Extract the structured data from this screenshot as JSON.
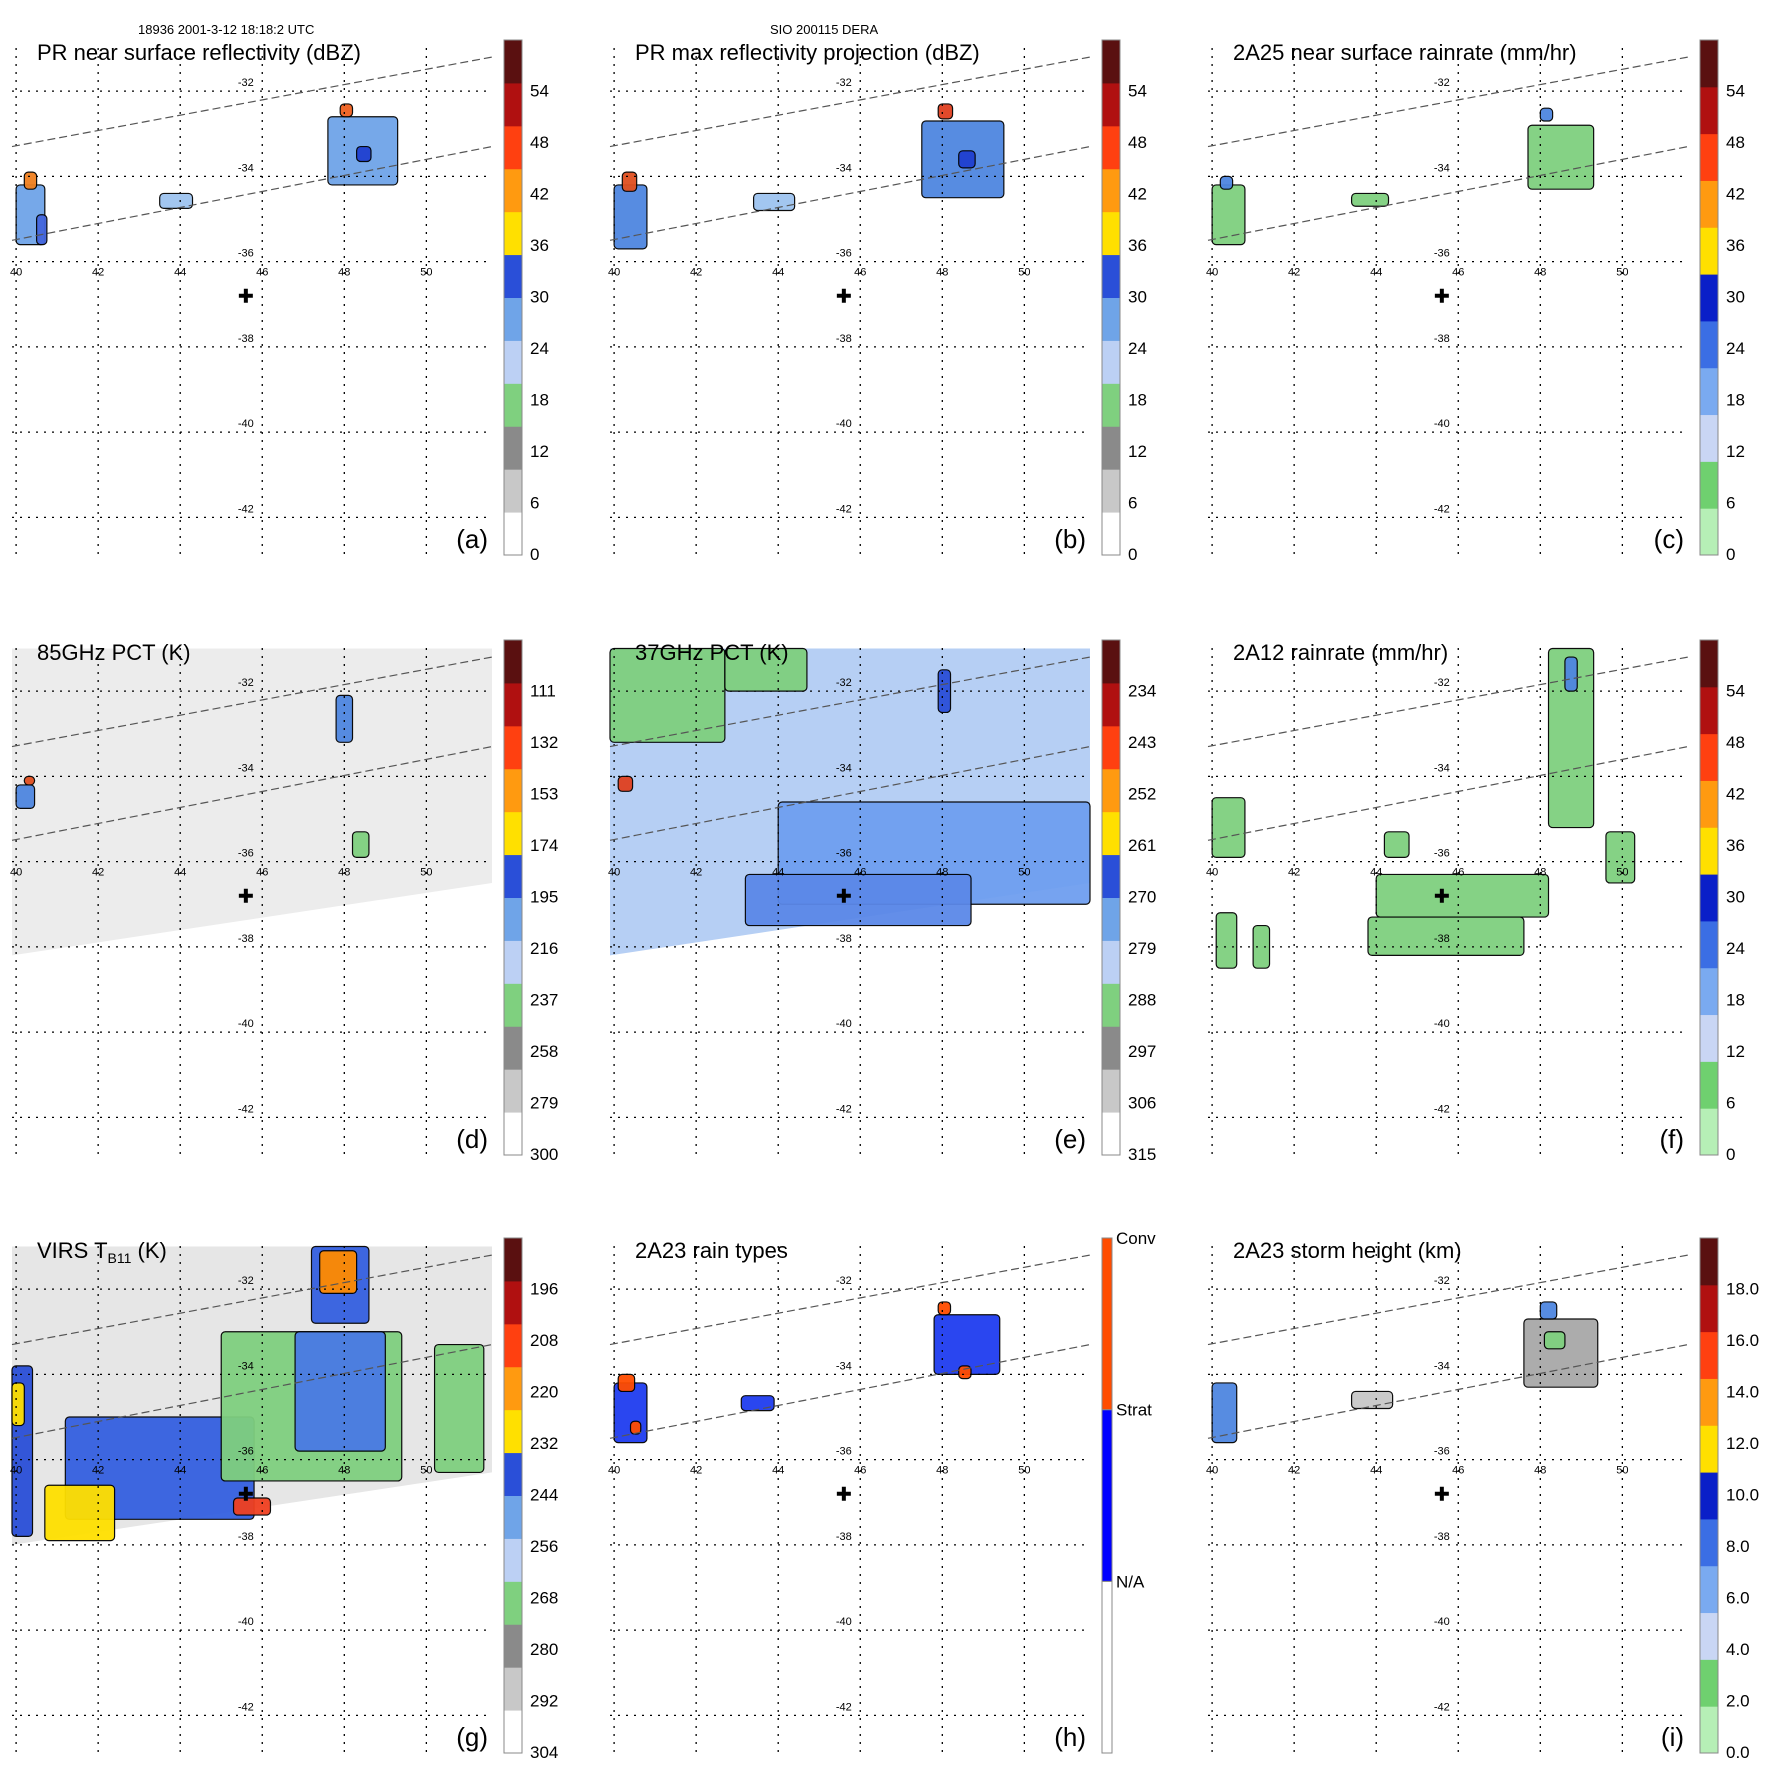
{
  "header": {
    "left": "18936 2001-3-12 18:18:2 UTC",
    "center": "SIO 200115 DERA"
  },
  "colors": {
    "base": "#ffffff",
    "grid": "#000000",
    "swath": "#555555",
    "marker": "#000000",
    "outline": "#000000"
  },
  "chart_data": [
    {
      "id": "a",
      "type": "heatmap",
      "panel_label": "(a)",
      "title": "PR near surface reflectivity (dBZ)",
      "xlim": [
        39.9,
        51.6
      ],
      "ylim": [
        -43,
        -30.8
      ],
      "x_ticks": [
        "40",
        "42",
        "44",
        "46",
        "48",
        "50"
      ],
      "y_ticks": [
        "-32",
        "-34",
        "-36",
        "-38",
        "-40",
        "-42"
      ],
      "marker": [
        45.6,
        -36.8
      ],
      "colorbar": {
        "kind": "numeric",
        "labels": [
          "0",
          "6",
          "12",
          "18",
          "24",
          "30",
          "36",
          "42",
          "48",
          "54"
        ],
        "palette": "dbz"
      },
      "swath": true,
      "fields": [
        {
          "x": 40.0,
          "y": -34.2,
          "w": 0.7,
          "h": 1.4,
          "c": "#6fa4e8"
        },
        {
          "x": 40.2,
          "y": -33.9,
          "w": 0.3,
          "h": 0.4,
          "c": "#f08020"
        },
        {
          "x": 40.5,
          "y": -34.9,
          "w": 0.25,
          "h": 0.7,
          "c": "#4466dd"
        },
        {
          "x": 43.5,
          "y": -34.4,
          "w": 0.8,
          "h": 0.35,
          "c": "#9ec4f0"
        },
        {
          "x": 47.6,
          "y": -32.6,
          "w": 1.7,
          "h": 1.6,
          "c": "#6fa4e8"
        },
        {
          "x": 47.9,
          "y": -32.3,
          "w": 0.3,
          "h": 0.3,
          "c": "#f06020"
        },
        {
          "x": 48.3,
          "y": -33.3,
          "w": 0.35,
          "h": 0.35,
          "c": "#2040d0"
        }
      ]
    },
    {
      "id": "b",
      "type": "heatmap",
      "panel_label": "(b)",
      "title": "PR max reflectivity projection (dBZ)",
      "xlim": [
        39.9,
        51.6
      ],
      "ylim": [
        -43,
        -30.8
      ],
      "x_ticks": [
        "40",
        "42",
        "44",
        "46",
        "48",
        "50"
      ],
      "y_ticks": [
        "-32",
        "-34",
        "-36",
        "-38",
        "-40",
        "-42"
      ],
      "marker": [
        45.6,
        -36.8
      ],
      "colorbar": {
        "kind": "numeric",
        "labels": [
          "0",
          "6",
          "12",
          "18",
          "24",
          "30",
          "36",
          "42",
          "48",
          "54"
        ],
        "palette": "dbz"
      },
      "swath": true,
      "fields": [
        {
          "x": 40.0,
          "y": -34.2,
          "w": 0.8,
          "h": 1.5,
          "c": "#4f86e0"
        },
        {
          "x": 40.2,
          "y": -33.9,
          "w": 0.35,
          "h": 0.45,
          "c": "#e05020"
        },
        {
          "x": 43.4,
          "y": -34.4,
          "w": 1.0,
          "h": 0.4,
          "c": "#9ec4f0"
        },
        {
          "x": 47.5,
          "y": -32.7,
          "w": 2.0,
          "h": 1.8,
          "c": "#4f86e0"
        },
        {
          "x": 47.9,
          "y": -32.3,
          "w": 0.35,
          "h": 0.35,
          "c": "#e04020"
        },
        {
          "x": 48.4,
          "y": -33.4,
          "w": 0.4,
          "h": 0.4,
          "c": "#2040d0"
        }
      ]
    },
    {
      "id": "c",
      "type": "heatmap",
      "panel_label": "(c)",
      "title": "2A25 near surface rainrate (mm/hr)",
      "xlim": [
        39.9,
        51.6
      ],
      "ylim": [
        -43,
        -30.8
      ],
      "x_ticks": [
        "40",
        "42",
        "44",
        "46",
        "48",
        "50"
      ],
      "y_ticks": [
        "-32",
        "-34",
        "-36",
        "-38",
        "-40",
        "-42"
      ],
      "marker": [
        45.6,
        -36.8
      ],
      "colorbar": {
        "kind": "numeric",
        "labels": [
          "0",
          "6",
          "12",
          "18",
          "24",
          "30",
          "36",
          "42",
          "48",
          "54"
        ],
        "palette": "rain"
      },
      "swath": true,
      "fields": [
        {
          "x": 40.0,
          "y": -34.2,
          "w": 0.8,
          "h": 1.4,
          "c": "#7fd07f"
        },
        {
          "x": 40.2,
          "y": -34.0,
          "w": 0.3,
          "h": 0.3,
          "c": "#4f86e0"
        },
        {
          "x": 43.4,
          "y": -34.4,
          "w": 0.9,
          "h": 0.3,
          "c": "#7fd07f"
        },
        {
          "x": 47.7,
          "y": -32.8,
          "w": 1.6,
          "h": 1.5,
          "c": "#7fd07f"
        },
        {
          "x": 48.0,
          "y": -32.4,
          "w": 0.3,
          "h": 0.3,
          "c": "#4f86e0"
        }
      ]
    },
    {
      "id": "d",
      "type": "heatmap",
      "panel_label": "(d)",
      "title": "85GHz PCT (K)",
      "xlim": [
        39.9,
        51.6
      ],
      "ylim": [
        -43,
        -30.8
      ],
      "x_ticks": [
        "40",
        "42",
        "44",
        "46",
        "48",
        "50"
      ],
      "y_ticks": [
        "-32",
        "-34",
        "-36",
        "-38",
        "-40",
        "-42"
      ],
      "marker": [
        45.6,
        -36.8
      ],
      "colorbar": {
        "kind": "numeric",
        "labels": [
          "300",
          "279",
          "258",
          "237",
          "216",
          "195",
          "174",
          "153",
          "132",
          "111"
        ],
        "palette": "dbz"
      },
      "swath": true,
      "scan": {
        "fill": "#ececec",
        "lon": [
          39.9,
          51.6
        ],
        "top": -31.0,
        "bottom_left": -38.2,
        "bottom_right": -36.5
      },
      "fields": [
        {
          "x": 40.0,
          "y": -34.2,
          "w": 0.45,
          "h": 0.55,
          "c": "#4f86e0"
        },
        {
          "x": 40.2,
          "y": -34.0,
          "w": 0.25,
          "h": 0.2,
          "c": "#e05020"
        },
        {
          "x": 47.8,
          "y": -32.1,
          "w": 0.4,
          "h": 1.1,
          "c": "#4f86e0"
        },
        {
          "x": 48.2,
          "y": -35.3,
          "w": 0.4,
          "h": 0.6,
          "c": "#7fd07f"
        }
      ]
    },
    {
      "id": "e",
      "type": "heatmap",
      "panel_label": "(e)",
      "title": "37GHz PCT (K)",
      "xlim": [
        39.9,
        51.6
      ],
      "ylim": [
        -43,
        -30.8
      ],
      "x_ticks": [
        "40",
        "42",
        "44",
        "46",
        "48",
        "50"
      ],
      "y_ticks": [
        "-32",
        "-34",
        "-36",
        "-38",
        "-40",
        "-42"
      ],
      "marker": [
        45.6,
        -36.8
      ],
      "colorbar": {
        "kind": "numeric",
        "labels": [
          "315",
          "306",
          "297",
          "288",
          "279",
          "270",
          "261",
          "252",
          "243",
          "234"
        ],
        "palette": "dbz"
      },
      "swath": true,
      "scan": {
        "fill": "#b6cff4",
        "lon": [
          39.9,
          51.6
        ],
        "top": -31.0,
        "bottom_left": -38.2,
        "bottom_right": -36.5
      },
      "fields": [
        {
          "x": 39.9,
          "y": -31.0,
          "w": 2.8,
          "h": 2.2,
          "c": "#7fcf7f"
        },
        {
          "x": 42.7,
          "y": -31.0,
          "w": 2.0,
          "h": 1.0,
          "c": "#7fcf7f"
        },
        {
          "x": 44.0,
          "y": -34.6,
          "w": 7.6,
          "h": 2.4,
          "c": "#6f9ff0"
        },
        {
          "x": 43.2,
          "y": -36.3,
          "w": 5.5,
          "h": 1.2,
          "c": "#5b88e8"
        },
        {
          "x": 40.1,
          "y": -34.0,
          "w": 0.35,
          "h": 0.35,
          "c": "#e04020"
        },
        {
          "x": 47.9,
          "y": -31.5,
          "w": 0.3,
          "h": 1.0,
          "c": "#2a4fd8"
        }
      ]
    },
    {
      "id": "f",
      "type": "heatmap",
      "panel_label": "(f)",
      "title": "2A12 rainrate (mm/hr)",
      "xlim": [
        39.9,
        51.6
      ],
      "ylim": [
        -43,
        -30.8
      ],
      "x_ticks": [
        "40",
        "42",
        "44",
        "46",
        "48",
        "50"
      ],
      "y_ticks": [
        "-32",
        "-34",
        "-36",
        "-38",
        "-40",
        "-42"
      ],
      "marker": [
        45.6,
        -36.8
      ],
      "colorbar": {
        "kind": "numeric",
        "labels": [
          "0",
          "6",
          "12",
          "18",
          "24",
          "30",
          "36",
          "42",
          "48",
          "54"
        ],
        "palette": "rain"
      },
      "swath": true,
      "fields": [
        {
          "x": 40.0,
          "y": -34.5,
          "w": 0.8,
          "h": 1.4,
          "c": "#7fd07f"
        },
        {
          "x": 40.1,
          "y": -37.2,
          "w": 0.5,
          "h": 1.3,
          "c": "#7fd07f"
        },
        {
          "x": 41.0,
          "y": -37.5,
          "w": 0.4,
          "h": 1.0,
          "c": "#7fd07f"
        },
        {
          "x": 44.0,
          "y": -36.3,
          "w": 4.2,
          "h": 1.0,
          "c": "#7fd07f"
        },
        {
          "x": 43.8,
          "y": -37.3,
          "w": 3.8,
          "h": 0.9,
          "c": "#7fd07f"
        },
        {
          "x": 48.2,
          "y": -31.0,
          "w": 1.1,
          "h": 4.2,
          "c": "#7fd07f"
        },
        {
          "x": 48.6,
          "y": -31.2,
          "w": 0.3,
          "h": 0.8,
          "c": "#4f86e0"
        },
        {
          "x": 49.6,
          "y": -35.3,
          "w": 0.7,
          "h": 1.2,
          "c": "#7fd07f"
        },
        {
          "x": 44.2,
          "y": -35.3,
          "w": 0.6,
          "h": 0.6,
          "c": "#7fd07f"
        }
      ]
    },
    {
      "id": "g",
      "type": "heatmap",
      "panel_label": "(g)",
      "title": "VIRS T",
      "title_sub": "B11",
      "title_suffix": " (K)",
      "xlim": [
        39.9,
        51.6
      ],
      "ylim": [
        -43,
        -30.8
      ],
      "x_ticks": [
        "40",
        "42",
        "44",
        "46",
        "48",
        "50"
      ],
      "y_ticks": [
        "-32",
        "-34",
        "-36",
        "-38",
        "-40",
        "-42"
      ],
      "marker": [
        45.6,
        -36.8
      ],
      "colorbar": {
        "kind": "numeric",
        "labels": [
          "304",
          "292",
          "280",
          "268",
          "256",
          "244",
          "232",
          "220",
          "208",
          "196"
        ],
        "palette": "dbz"
      },
      "swath": true,
      "scan": {
        "fill": "#e6e6e6",
        "lon": [
          39.9,
          51.6
        ],
        "top": -31.0,
        "bottom_left": -38.0,
        "bottom_right": -36.3
      },
      "fields": [
        {
          "x": 39.9,
          "y": -33.8,
          "w": 0.5,
          "h": 4.0,
          "c": "#2a4fd8"
        },
        {
          "x": 39.9,
          "y": -34.2,
          "w": 0.3,
          "h": 1.0,
          "c": "#ffe000"
        },
        {
          "x": 41.2,
          "y": -35.0,
          "w": 4.6,
          "h": 2.4,
          "c": "#3460e0"
        },
        {
          "x": 40.7,
          "y": -36.6,
          "w": 1.7,
          "h": 1.3,
          "c": "#ffe000"
        },
        {
          "x": 47.2,
          "y": -31.0,
          "w": 1.4,
          "h": 1.8,
          "c": "#3460e0"
        },
        {
          "x": 47.4,
          "y": -31.1,
          "w": 0.9,
          "h": 1.0,
          "c": "#ff8a00"
        },
        {
          "x": 45.0,
          "y": -33.0,
          "w": 4.4,
          "h": 3.5,
          "c": "#7fcf7f"
        },
        {
          "x": 46.8,
          "y": -33.0,
          "w": 2.2,
          "h": 2.8,
          "c": "#4a7ae4"
        },
        {
          "x": 45.3,
          "y": -36.9,
          "w": 0.9,
          "h": 0.4,
          "c": "#f04020"
        },
        {
          "x": 50.2,
          "y": -33.3,
          "w": 1.2,
          "h": 3.0,
          "c": "#7fcf7f"
        }
      ]
    },
    {
      "id": "h",
      "type": "heatmap",
      "panel_label": "(h)",
      "title": "2A23 rain types",
      "xlim": [
        39.9,
        51.6
      ],
      "ylim": [
        -43,
        -30.8
      ],
      "x_ticks": [
        "40",
        "42",
        "44",
        "46",
        "48",
        "50"
      ],
      "y_ticks": [
        "-32",
        "-34",
        "-36",
        "-38",
        "-40",
        "-42"
      ],
      "marker": [
        45.6,
        -36.8
      ],
      "colorbar": {
        "kind": "categorical",
        "labels": [
          "N/A",
          "Strat",
          "Conv"
        ],
        "colors": [
          "#ffffff",
          "#0000ff",
          "#ff4c00"
        ]
      },
      "swath": true,
      "fields": [
        {
          "x": 40.0,
          "y": -34.2,
          "w": 0.8,
          "h": 1.4,
          "c": "#1f3df0"
        },
        {
          "x": 40.1,
          "y": -34.0,
          "w": 0.4,
          "h": 0.4,
          "c": "#ff4c00"
        },
        {
          "x": 40.4,
          "y": -35.1,
          "w": 0.25,
          "h": 0.3,
          "c": "#ff4c00"
        },
        {
          "x": 43.1,
          "y": -34.5,
          "w": 0.8,
          "h": 0.35,
          "c": "#1f3df0"
        },
        {
          "x": 47.8,
          "y": -32.6,
          "w": 1.6,
          "h": 1.4,
          "c": "#1f3df0"
        },
        {
          "x": 47.9,
          "y": -32.3,
          "w": 0.3,
          "h": 0.3,
          "c": "#ff4c00"
        },
        {
          "x": 48.4,
          "y": -33.8,
          "w": 0.3,
          "h": 0.3,
          "c": "#ff4c00"
        }
      ]
    },
    {
      "id": "i",
      "type": "heatmap",
      "panel_label": "(i)",
      "title": "2A23 storm height (km)",
      "xlim": [
        39.9,
        51.6
      ],
      "ylim": [
        -43,
        -30.8
      ],
      "x_ticks": [
        "40",
        "42",
        "44",
        "46",
        "48",
        "50"
      ],
      "y_ticks": [
        "-32",
        "-34",
        "-36",
        "-38",
        "-40",
        "-42"
      ],
      "marker": [
        45.6,
        -36.8
      ],
      "colorbar": {
        "kind": "numeric",
        "labels": [
          "0.0",
          "2.0",
          "4.0",
          "6.0",
          "8.0",
          "10.0",
          "12.0",
          "14.0",
          "16.0",
          "18.0"
        ],
        "palette": "rain"
      },
      "swath": true,
      "fields": [
        {
          "x": 40.0,
          "y": -34.2,
          "w": 0.6,
          "h": 1.4,
          "c": "#4f86e0"
        },
        {
          "x": 43.4,
          "y": -34.4,
          "w": 1.0,
          "h": 0.4,
          "c": "#c8c8c8"
        },
        {
          "x": 47.6,
          "y": -32.7,
          "w": 1.8,
          "h": 1.6,
          "c": "#a8a8a8"
        },
        {
          "x": 48.0,
          "y": -32.3,
          "w": 0.4,
          "h": 0.4,
          "c": "#4f86e0"
        },
        {
          "x": 48.1,
          "y": -33.0,
          "w": 0.5,
          "h": 0.4,
          "c": "#7fd07f"
        }
      ]
    }
  ]
}
